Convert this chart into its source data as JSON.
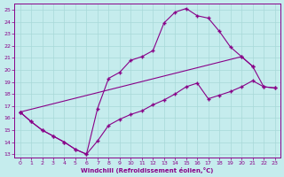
{
  "xlabel": "Windchill (Refroidissement éolien,°C)",
  "xlim_min": -0.5,
  "xlim_max": 23.5,
  "ylim_min": 12.7,
  "ylim_max": 25.5,
  "xticks": [
    0,
    1,
    2,
    3,
    4,
    5,
    6,
    7,
    8,
    9,
    10,
    11,
    12,
    13,
    14,
    15,
    16,
    17,
    18,
    19,
    20,
    21,
    22,
    23
  ],
  "yticks": [
    13,
    14,
    15,
    16,
    17,
    18,
    19,
    20,
    21,
    22,
    23,
    24,
    25
  ],
  "bg_color": "#c5eced",
  "line_color": "#880088",
  "grid_color": "#a8d8d8",
  "line1_x": [
    0,
    1,
    2,
    3,
    4,
    5,
    6,
    7,
    8,
    9,
    10,
    11,
    12,
    13,
    14,
    15,
    16,
    17,
    18,
    19,
    20,
    21
  ],
  "line1_y": [
    16.5,
    15.7,
    15.0,
    14.5,
    14.0,
    13.4,
    13.0,
    16.8,
    19.3,
    19.8,
    20.8,
    21.1,
    21.6,
    23.9,
    24.8,
    25.1,
    24.5,
    24.3,
    23.2,
    21.9,
    21.1,
    20.3
  ],
  "line2_x": [
    0,
    1,
    2,
    3,
    4,
    5,
    6,
    7,
    8,
    9,
    10,
    11,
    12,
    13,
    14,
    15,
    16,
    17,
    18,
    19,
    20,
    21,
    22,
    23
  ],
  "line2_y": [
    16.5,
    15.7,
    15.0,
    14.5,
    14.0,
    13.4,
    13.0,
    14.1,
    15.4,
    15.9,
    16.3,
    16.6,
    17.1,
    17.5,
    18.0,
    18.6,
    18.9,
    17.6,
    17.9,
    18.2,
    18.6,
    19.1,
    18.6,
    18.5
  ],
  "line3_x": [
    0,
    20,
    21,
    22,
    23
  ],
  "line3_y": [
    16.5,
    21.1,
    20.3,
    18.6,
    18.5
  ]
}
